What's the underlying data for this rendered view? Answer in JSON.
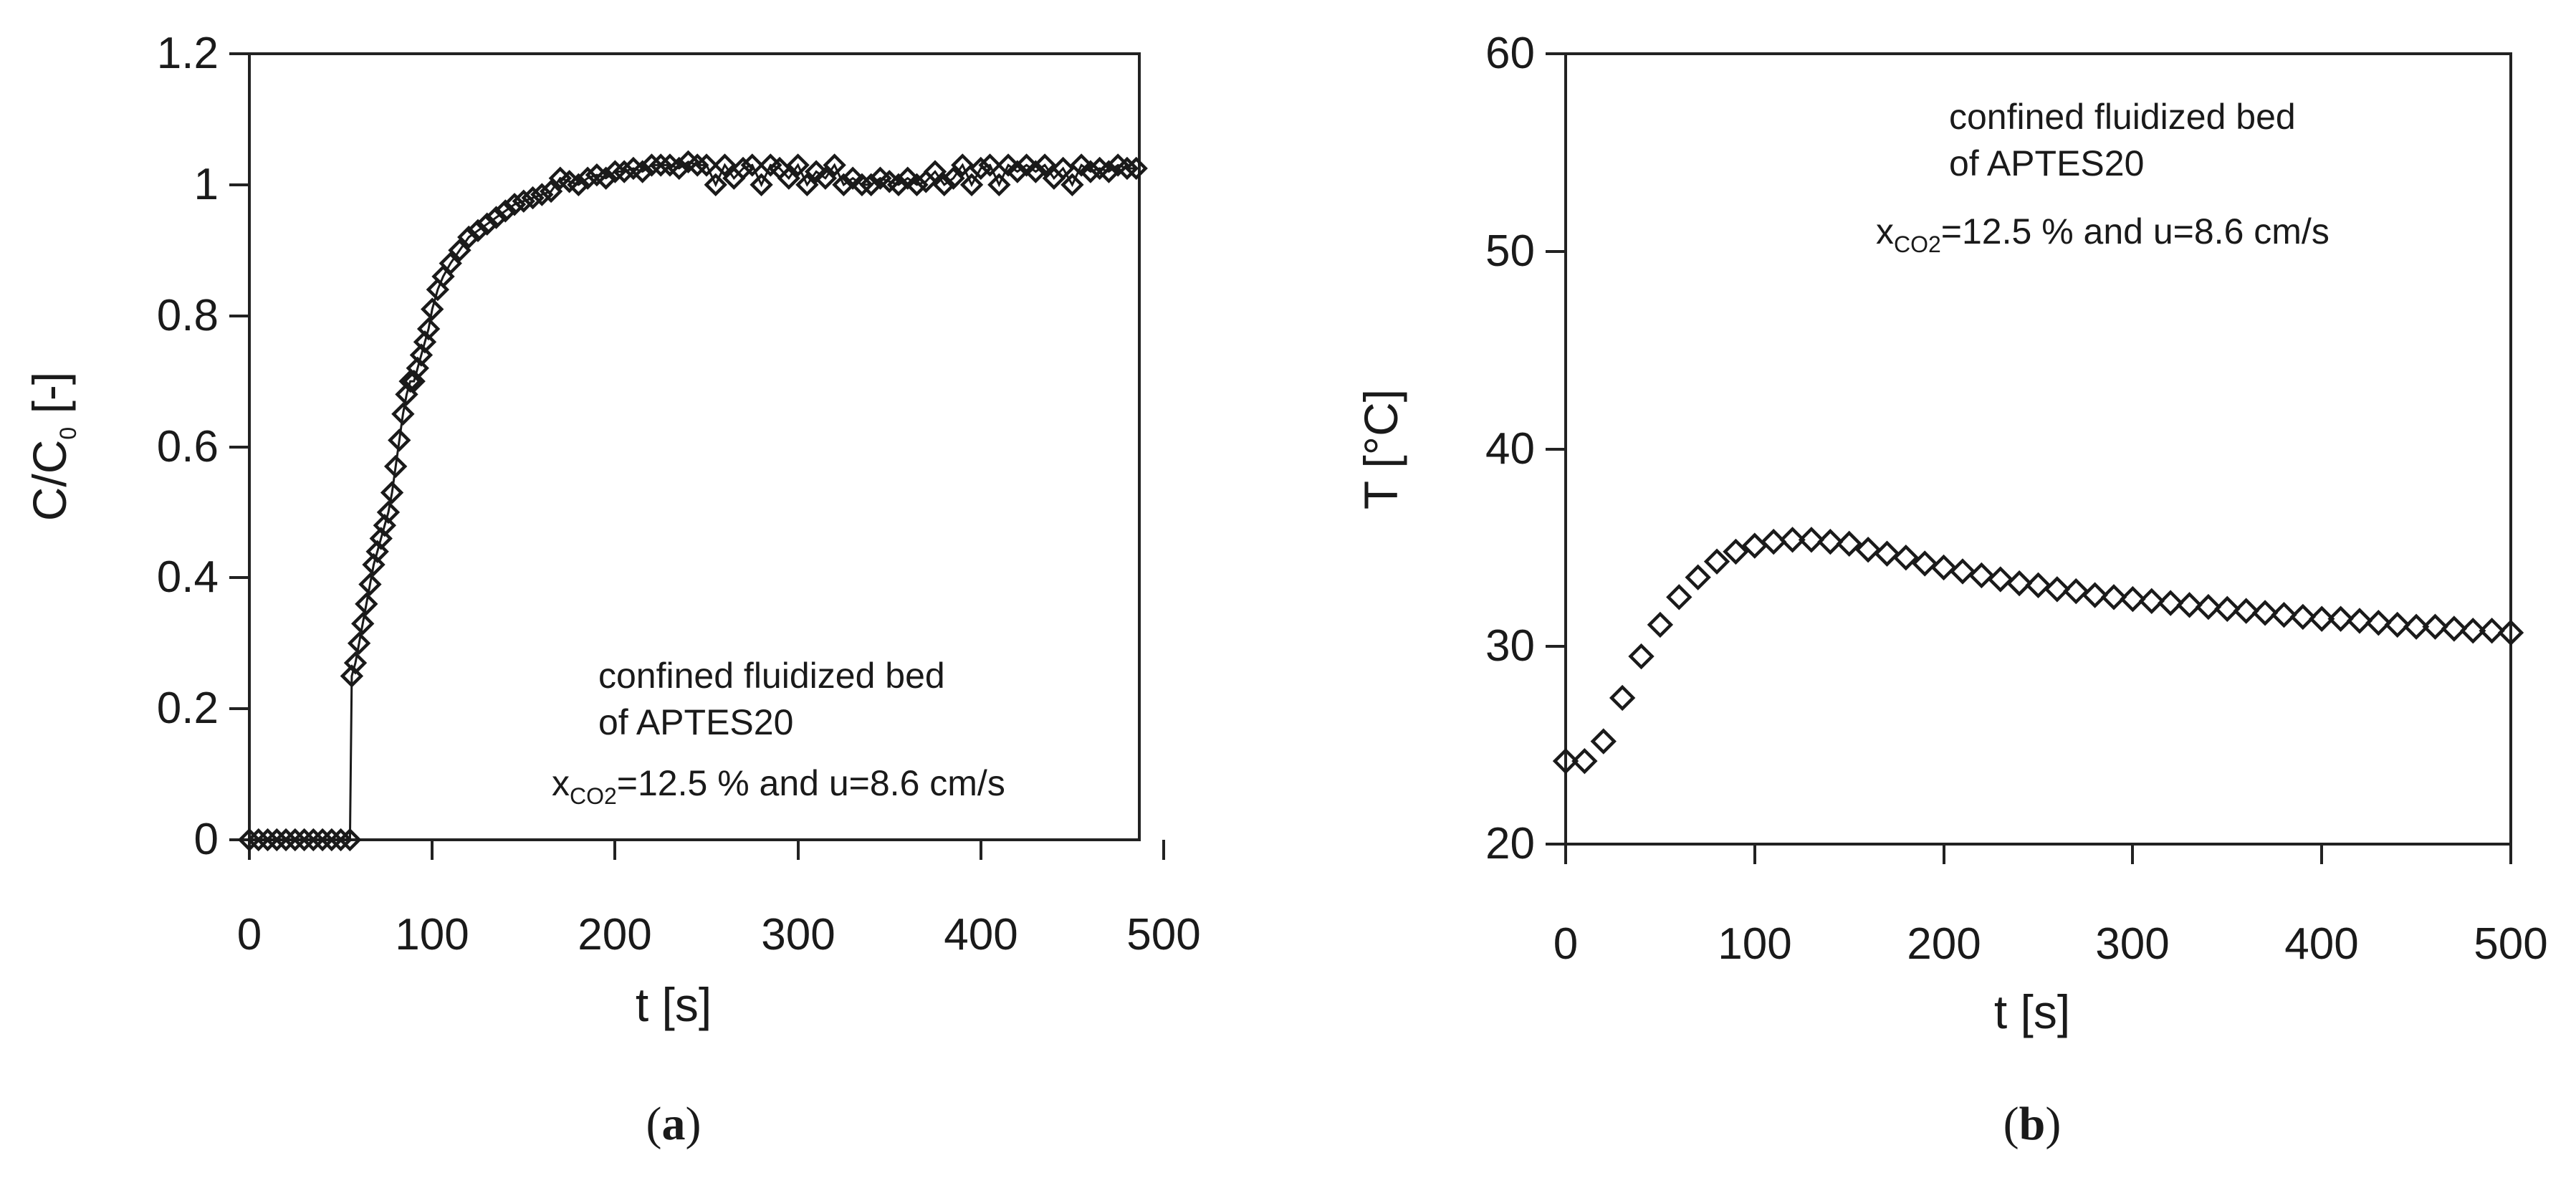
{
  "chart_data": [
    {
      "type": "scatter",
      "panel_tag": {
        "open": "(",
        "letter": "a",
        "close": ")"
      },
      "xlabel": "t [s]",
      "ylabel": {
        "main": "C/C",
        "subscript": "0",
        "suffix": " [-]"
      },
      "xlim": [
        0,
        500
      ],
      "ylim": [
        0,
        1.2
      ],
      "x_ticks": [
        "0",
        "100",
        "200",
        "300",
        "400",
        "500"
      ],
      "y_ticks": [
        "0",
        "0.2",
        "0.4",
        "0.6",
        "0.8",
        "1",
        "1.2"
      ],
      "grid": false,
      "marker": "open-diamond",
      "annotation": {
        "line1": "confined fluidized bed",
        "line2": "of APTES20",
        "line3_prefix": "x",
        "line3_sub": "CO2",
        "line3_rest": "=12.5 % and u=8.6 cm/s"
      },
      "series": [
        {
          "x": [
            0,
            5,
            10,
            15,
            20,
            25,
            30,
            35,
            40,
            45,
            50,
            55,
            56,
            58,
            60,
            62,
            64,
            66,
            68,
            70,
            72,
            74,
            76,
            78,
            80,
            82,
            84,
            86,
            88,
            90,
            92,
            94,
            96,
            98,
            100,
            103,
            106,
            110,
            115,
            120,
            125,
            130,
            135,
            140,
            145,
            150,
            155,
            160,
            165,
            170,
            175,
            180,
            185,
            190,
            195,
            200,
            205,
            210,
            215,
            220,
            225,
            230,
            235,
            240,
            245,
            250,
            255,
            260,
            265,
            270,
            275,
            280,
            285,
            290,
            295,
            300,
            305,
            310,
            315,
            320,
            325,
            330,
            335,
            340,
            345,
            350,
            355,
            360,
            365,
            370,
            375,
            380,
            385,
            390,
            395,
            400,
            405,
            410,
            415,
            420,
            425,
            430,
            435,
            440,
            445,
            450,
            455,
            460,
            465,
            470,
            475,
            480,
            485
          ],
          "y": [
            0,
            0,
            0,
            0,
            0,
            0,
            0,
            0,
            0,
            0,
            0,
            0,
            0.25,
            0.27,
            0.3,
            0.33,
            0.36,
            0.39,
            0.42,
            0.44,
            0.46,
            0.48,
            0.5,
            0.53,
            0.57,
            0.61,
            0.65,
            0.68,
            0.7,
            0.7,
            0.72,
            0.74,
            0.76,
            0.78,
            0.81,
            0.84,
            0.86,
            0.88,
            0.9,
            0.92,
            0.93,
            0.94,
            0.95,
            0.96,
            0.97,
            0.975,
            0.98,
            0.985,
            0.99,
            1.01,
            1.005,
            1.0,
            1.01,
            1.015,
            1.01,
            1.02,
            1.02,
            1.025,
            1.02,
            1.03,
            1.03,
            1.03,
            1.025,
            1.035,
            1.03,
            1.03,
            1.0,
            1.03,
            1.01,
            1.025,
            1.03,
            1.0,
            1.03,
            1.025,
            1.01,
            1.03,
            1.0,
            1.02,
            1.01,
            1.03,
            1.0,
            1.01,
            1.0,
            1.0,
            1.01,
            1.005,
            1.0,
            1.01,
            1.0,
            1.005,
            1.02,
            1.0,
            1.01,
            1.03,
            1.0,
            1.025,
            1.03,
            1.0,
            1.03,
            1.02,
            1.03,
            1.02,
            1.03,
            1.01,
            1.025,
            1.0,
            1.03,
            1.02,
            1.025,
            1.02,
            1.03,
            1.025,
            1.025
          ]
        }
      ]
    },
    {
      "type": "scatter",
      "panel_tag": {
        "open": "(",
        "letter": "b",
        "close": ")"
      },
      "xlabel": "t [s]",
      "ylabel": "T [°C]",
      "xlim": [
        0,
        500
      ],
      "ylim": [
        20,
        60
      ],
      "x_ticks": [
        "0",
        "100",
        "200",
        "300",
        "400",
        "500"
      ],
      "y_ticks": [
        "20",
        "30",
        "40",
        "50",
        "60"
      ],
      "grid": false,
      "marker": "open-diamond",
      "annotation": {
        "line1": "confined fluidized bed",
        "line2": "of APTES20",
        "line3_prefix": "x",
        "line3_sub": "CO2",
        "line3_rest": "=12.5 % and u=8.6 cm/s"
      },
      "series": [
        {
          "x": [
            0,
            10,
            20,
            30,
            40,
            50,
            60,
            70,
            80,
            90,
            100,
            110,
            120,
            130,
            140,
            150,
            160,
            170,
            180,
            190,
            200,
            210,
            220,
            230,
            240,
            250,
            260,
            270,
            280,
            290,
            300,
            310,
            320,
            330,
            340,
            350,
            360,
            370,
            380,
            390,
            400,
            410,
            420,
            430,
            440,
            450,
            460,
            470,
            480,
            490,
            500
          ],
          "y": [
            24.2,
            24.2,
            25.2,
            27.4,
            29.5,
            31.1,
            32.5,
            33.5,
            34.3,
            34.8,
            35.1,
            35.3,
            35.4,
            35.4,
            35.3,
            35.2,
            34.9,
            34.7,
            34.5,
            34.2,
            34.0,
            33.8,
            33.6,
            33.4,
            33.2,
            33.1,
            32.9,
            32.8,
            32.6,
            32.5,
            32.4,
            32.3,
            32.2,
            32.1,
            32.0,
            31.9,
            31.8,
            31.7,
            31.6,
            31.5,
            31.4,
            31.4,
            31.3,
            31.2,
            31.1,
            31.0,
            31.0,
            30.9,
            30.8,
            30.8,
            30.7
          ]
        }
      ]
    }
  ]
}
